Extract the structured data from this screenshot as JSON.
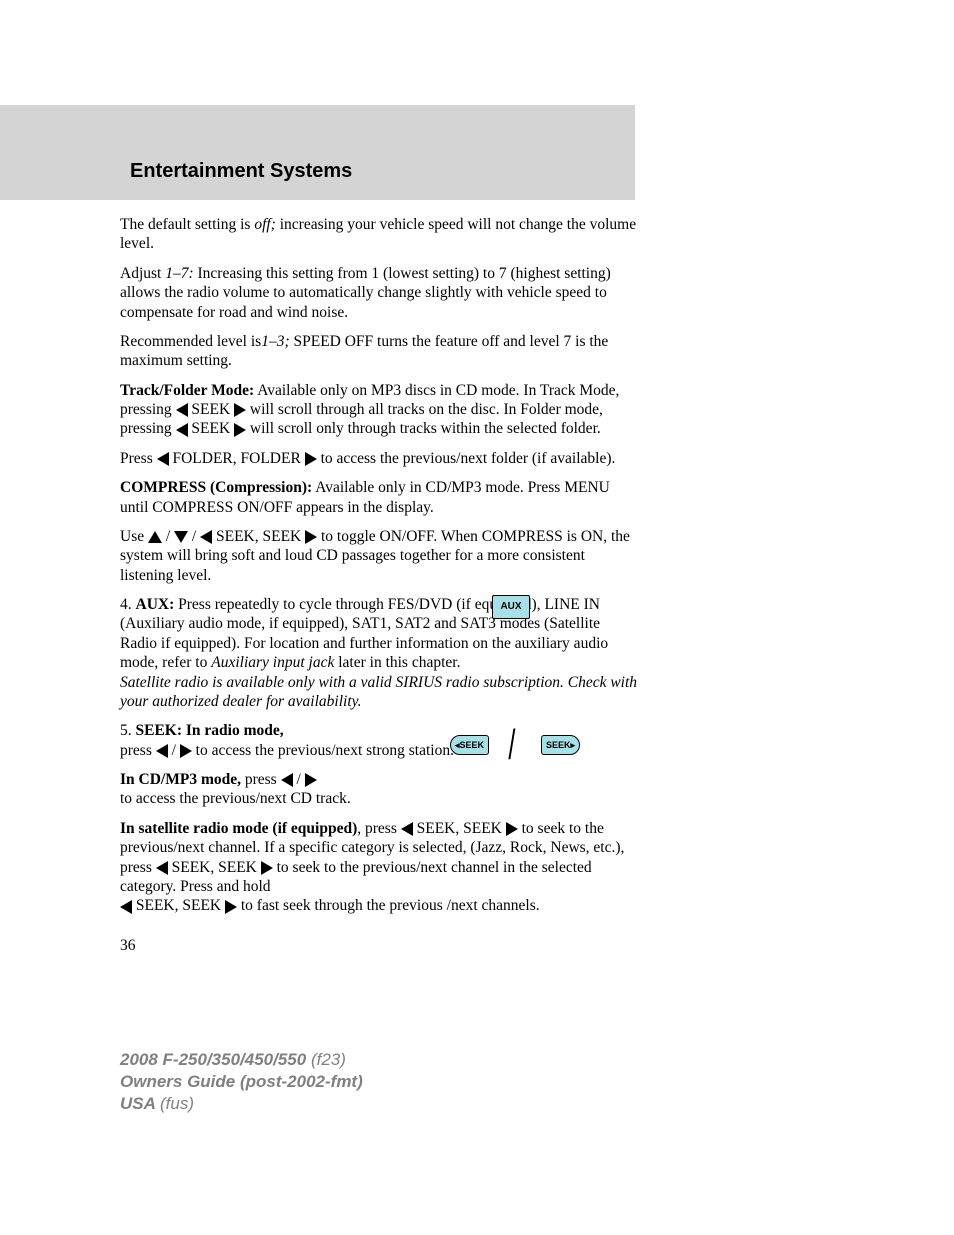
{
  "header": {
    "title": "Entertainment Systems"
  },
  "p1a": "The default setting is ",
  "p1b": "off;",
  "p1c": " increasing your vehicle speed will not change the volume level.",
  "p2a": "Adjust ",
  "p2b": "1–7:",
  "p2c": " Increasing this setting from 1 (lowest setting) to 7 (highest setting) allows the radio volume to automatically change slightly with vehicle speed to compensate for road and wind noise.",
  "p3a": "Recommended level is",
  "p3b": "1–3;",
  "p3c": " SPEED OFF turns the feature off and level 7 is the maximum setting.",
  "p4a": "Track/Folder Mode:",
  "p4b": " Available only on MP3 discs in CD mode. In Track Mode, pressing ",
  "p4c": " SEEK ",
  "p4d": " will scroll through all tracks on the disc. In Folder mode, pressing ",
  "p4e": " SEEK ",
  "p4f": " will scroll only through tracks within the selected folder.",
  "p5a": "Press ",
  "p5b": " FOLDER, FOLDER ",
  "p5c": " to access the previous/next folder (if available).",
  "p6a": "COMPRESS (Compression):",
  "p6b": " Available only in CD/MP3 mode. Press MENU until COMPRESS ON/OFF appears in the display.",
  "p7a": "Use ",
  "p7b": " / ",
  "p7c": " / ",
  "p7d": " SEEK, SEEK ",
  "p7e": " to toggle ON/OFF. When COMPRESS is ON, the system will bring soft and loud CD passages together for a more consistent listening level.",
  "p8a": "4. ",
  "p8b": "AUX:",
  "p8c": " Press repeatedly to cycle through FES/DVD (if equipped), LINE IN (Auxiliary audio mode, if equipped), SAT1, SAT2 and SAT3 modes (Satellite Radio if equipped). For location and further information on the auxiliary audio mode, refer to ",
  "p8d": "Auxiliary input jack",
  "p8e": " later in this chapter.",
  "p8f": "Satellite radio is available only with a valid SIRIUS radio subscription. Check with your authorized dealer for availability.",
  "aux_label": "AUX",
  "p9a": "5. ",
  "p9b": "SEEK: In radio mode,",
  "p9c": " press ",
  "p9d": " / ",
  "p9e": " to access the previous/next strong station.",
  "seek_left": "◂SEEK",
  "seek_right": "SEEK▸",
  "p10a": "In CD/MP3 mode,",
  "p10b": " press ",
  "p10c": " / ",
  "p10d": " to access the previous/next CD track.",
  "p11a": "In satellite radio mode (if equipped)",
  "p11b": ", press ",
  "p11c": " SEEK, SEEK ",
  "p11d": " to seek to the previous/next channel. If a specific category is selected, (Jazz, Rock, News, etc.), press ",
  "p11e": " SEEK, SEEK ",
  "p11f": " to seek to the previous/next channel in the selected category. Press and hold ",
  "p11g": " SEEK, SEEK ",
  "p11h": " to fast seek through the previous /next channels.",
  "page_number": "36",
  "footer": {
    "line1a": "2008 F-250/350/450/550 ",
    "line1b": "(f23)",
    "line2": "Owners Guide (post-2002-fmt)",
    "line3a": "USA ",
    "line3b": "(fus)"
  },
  "colors": {
    "header_bg": "#d4d4d4",
    "button_bg": "#a8e0e8",
    "footer_text": "#808080",
    "body_text": "#000000",
    "page_bg": "#ffffff"
  },
  "typography": {
    "body_family": "Georgia serif",
    "header_family": "Arial sans-serif",
    "body_size_pt": 12,
    "header_size_pt": 15,
    "footer_size_pt": 13
  }
}
